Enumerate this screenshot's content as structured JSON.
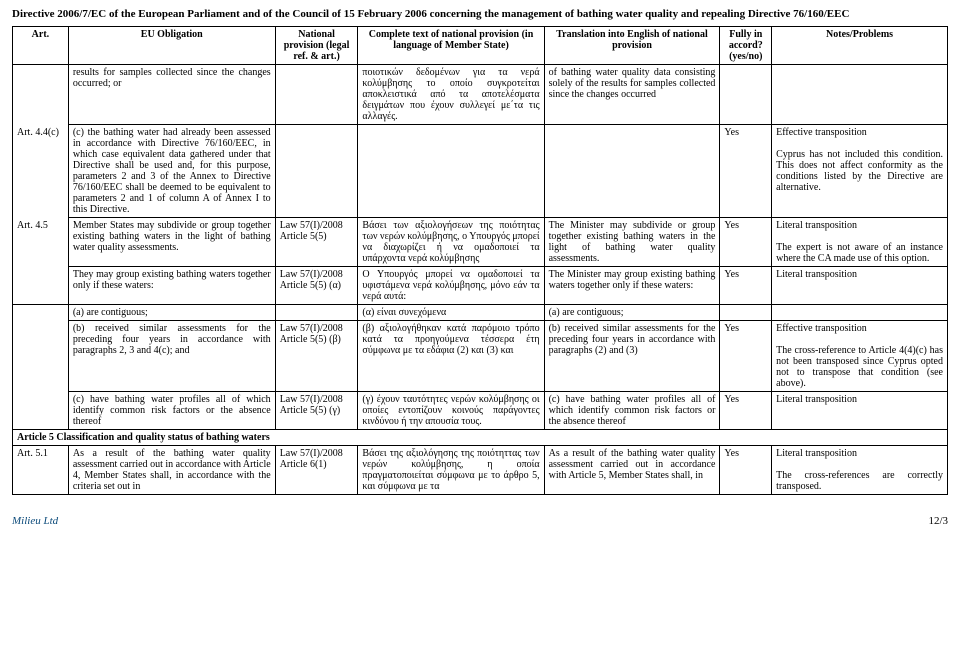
{
  "title": "Directive 2006/7/EC of the European Parliament and of the Council of 15 February 2006 concerning the management of bathing water quality and repealing Directive 76/160/EEC",
  "headers": {
    "art": "Art.",
    "eu": "EU Obligation",
    "nat": "National provision (legal ref. & art.)",
    "complete": "Complete text of national provision (in language of Member State)",
    "trans": "Translation into English of national provision",
    "fully": "Fully in accord? (yes/no)",
    "notes": "Notes/Problems"
  },
  "rows": [
    {
      "art": "",
      "eu": "results for samples collected since the changes occurred; or",
      "nat": "",
      "complete": "ποιοτικών δεδομένων για τα νερά κολύμβησης το οποίο συγκροτείται αποκλειστικά από τα αποτελέσματα δειγμάτων που έχουν συλλεγεί με΄τα τις αλλαγές.",
      "trans": "of bathing water quality data consisting solely of the results for samples collected since the changes occurred",
      "fully": "",
      "notes": ""
    },
    {
      "art": "Art. 4.4(c)",
      "eu": "(c) the bathing water had already been assessed in accordance with Directive 76/160/EEC, in which case equivalent data gathered under that Directive shall be used and, for this purpose, parameters 2 and 3 of the Annex to Directive 76/160/EEC shall be deemed to be equivalent to parameters 2 and 1 of column A of Annex I to this Directive.",
      "nat": "",
      "complete": "",
      "trans": "",
      "fully": "Yes",
      "notes": "Effective transposition\n\nCyprus has not included this condition. This does not affect conformity as the conditions listed by the Directive are alternative."
    },
    {
      "art": "Art. 4.5",
      "eu": "Member States may subdivide or group together existing bathing waters in the light of bathing water quality assessments.",
      "nat": "Law 57(I)/2008 Article 5(5)",
      "complete": "Βάσει των αξιολογήσεων της ποιότητας των νερών κολύμβησης, ο Υπουργός μπορεί να διαχωρίζει ή να ομαδοποιεί τα υπάρχοντα νερά κολύμβησης",
      "trans": "The Minister may subdivide or group together existing bathing waters in the light of bathing water quality assessments.",
      "fully": "Yes",
      "notes": "Literal transposition\n\nThe expert is not aware of an instance where the CA made use of this option."
    },
    {
      "art": "",
      "eu": "They may group existing bathing waters together only if these waters:",
      "nat": "Law 57(I)/2008 Article 5(5) (α)",
      "complete": "Ο Υπουργός μπορεί να ομαδοποιεί τα υφιστάμενα νερά κολύμβησης, μόνο εάν τα νερά αυτά:",
      "trans": "The Minister may group existing bathing waters together only if these waters:",
      "fully": "Yes",
      "notes": "Literal transposition"
    },
    {
      "art": "",
      "eu": "(a) are contiguous;",
      "nat": "",
      "complete": "(α) είναι συνεχόμενα",
      "trans": "(a) are contiguous;",
      "fully": "",
      "notes": ""
    },
    {
      "art": "",
      "eu": "(b) received similar assessments for the preceding four years in accordance with paragraphs 2, 3 and 4(c); and",
      "nat": "Law 57(I)/2008 Article 5(5) (β)",
      "complete": "(β) αξιολογήθηκαν κατά παρόμοιο τρόπο κατά τα προηγούμενα τέσσερα έτη σύμφωνα με τα εδάφια (2) και (3) και",
      "trans": "(b) received similar assessments for the preceding four years in accordance with paragraphs (2) and (3)",
      "fully": "Yes",
      "notes": "Effective transposition\n\nThe cross-reference to Article 4(4)(c) has not been transposed since Cyprus opted not to transpose that condition (see above)."
    },
    {
      "art": "",
      "eu": "(c) have bathing water profiles all of which identify common risk factors or the absence thereof",
      "nat": "Law 57(I)/2008 Article 5(5) (γ)",
      "complete": "(γ) έχουν ταυτότητες νερών κολύμβησης οι οποίες εντοπίζουν κοινούς παράγοντες κινδύνου ή την απουσία τους.",
      "trans": "(c) have bathing water profiles all of which identify common risk factors or the absence thereof",
      "fully": "Yes",
      "notes": "Literal transposition"
    }
  ],
  "section": "Article 5 Classification and quality status of bathing waters",
  "row51": {
    "art": "Art. 5.1",
    "eu": "As a result of the bathing water quality assessment carried out in accordance with Article 4, Member States shall, in accordance with the criteria set out in",
    "nat": "Law 57(I)/2008 Article 6(1)",
    "complete": "Βάσει της αξιολόγησης της ποιότηττας των νερών κολύμβησης, η οποία πραγματοποιείται σύμφωνα με το άρθρο 5, και σύμφωνα με τα",
    "trans": "As a result of the bathing water quality assessment carried out in accordance with Article 5, Member States shall, in",
    "fully": "Yes",
    "notes": "Literal transposition\n\nThe cross-references are correctly transposed."
  },
  "footer": {
    "org": "Milieu Ltd",
    "page": "12/3"
  }
}
